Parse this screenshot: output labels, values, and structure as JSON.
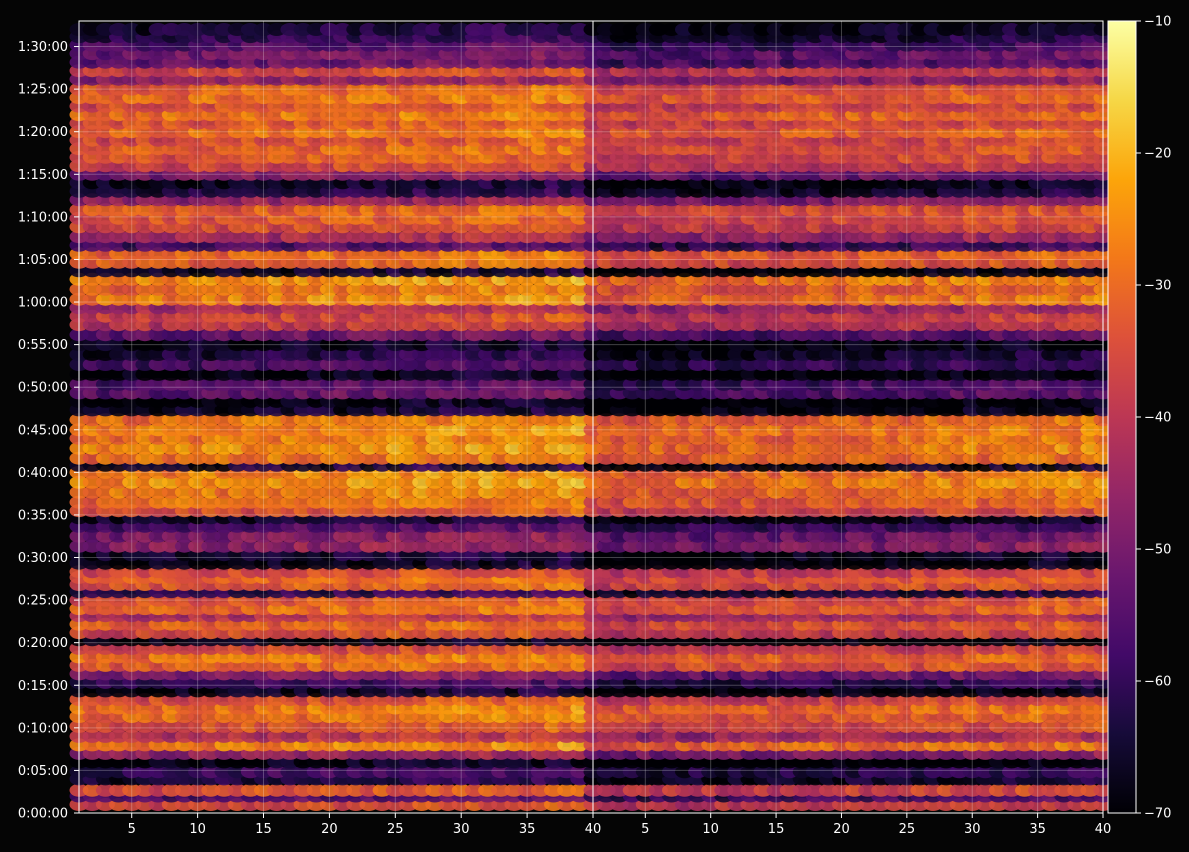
{
  "chart_data": {
    "type": "heatmap",
    "title": "",
    "xlabel": "",
    "ylabel": "",
    "colormap": "inferno",
    "background": "#050505",
    "grid": true,
    "panels": [
      {
        "name": "",
        "xlim": [
          1,
          40
        ],
        "xticks": [
          5,
          10,
          15,
          20,
          25,
          30,
          35,
          40
        ]
      },
      {
        "name": "",
        "xlim": [
          1,
          40
        ],
        "xticks": [
          5,
          10,
          15,
          20,
          25,
          30,
          35,
          40
        ]
      }
    ],
    "ylim_seconds": [
      0,
      5580
    ],
    "yticks": [
      {
        "value": 0,
        "label": "0:00:00"
      },
      {
        "value": 300,
        "label": "0:05:00"
      },
      {
        "value": 600,
        "label": "0:10:00"
      },
      {
        "value": 900,
        "label": "0:15:00"
      },
      {
        "value": 1200,
        "label": "0:20:00"
      },
      {
        "value": 1500,
        "label": "0:25:00"
      },
      {
        "value": 1800,
        "label": "0:30:00"
      },
      {
        "value": 2100,
        "label": "0:35:00"
      },
      {
        "value": 2400,
        "label": "0:40:00"
      },
      {
        "value": 2700,
        "label": "0:45:00"
      },
      {
        "value": 3000,
        "label": "0:50:00"
      },
      {
        "value": 3300,
        "label": "0:55:00"
      },
      {
        "value": 3600,
        "label": "1:00:00"
      },
      {
        "value": 3900,
        "label": "1:05:00"
      },
      {
        "value": 4200,
        "label": "1:10:00"
      },
      {
        "value": 4500,
        "label": "1:15:00"
      },
      {
        "value": 4800,
        "label": "1:20:00"
      },
      {
        "value": 5100,
        "label": "1:25:00"
      },
      {
        "value": 5400,
        "label": "1:30:00"
      }
    ],
    "colorbar": {
      "range": [
        -70,
        -10
      ],
      "ticks": [
        -70,
        -60,
        -50,
        -40,
        -30,
        -20,
        -10
      ],
      "tick_labels": [
        "−70",
        "−60",
        "−50",
        "−40",
        "−30",
        "−20",
        "−10"
      ]
    },
    "row_profile": [
      {
        "t": 60,
        "v": -35
      },
      {
        "t": 120,
        "v": -55
      },
      {
        "t": 160,
        "v": -33
      },
      {
        "t": 240,
        "v": -62
      },
      {
        "t": 290,
        "v": -58
      },
      {
        "t": 360,
        "v": -68
      },
      {
        "t": 420,
        "v": -45
      },
      {
        "t": 480,
        "v": -26
      },
      {
        "t": 540,
        "v": -40
      },
      {
        "t": 610,
        "v": -32
      },
      {
        "t": 680,
        "v": -28
      },
      {
        "t": 740,
        "v": -27
      },
      {
        "t": 800,
        "v": -33
      },
      {
        "t": 860,
        "v": -66
      },
      {
        "t": 920,
        "v": -58
      },
      {
        "t": 980,
        "v": -48
      },
      {
        "t": 1040,
        "v": -30
      },
      {
        "t": 1100,
        "v": -27
      },
      {
        "t": 1160,
        "v": -35
      },
      {
        "t": 1220,
        "v": -67
      },
      {
        "t": 1270,
        "v": -34
      },
      {
        "t": 1330,
        "v": -30
      },
      {
        "t": 1390,
        "v": -40
      },
      {
        "t": 1440,
        "v": -29
      },
      {
        "t": 1500,
        "v": -32
      },
      {
        "t": 1560,
        "v": -60
      },
      {
        "t": 1610,
        "v": -31
      },
      {
        "t": 1660,
        "v": -30
      },
      {
        "t": 1700,
        "v": -35
      },
      {
        "t": 1760,
        "v": -67
      },
      {
        "t": 1820,
        "v": -64
      },
      {
        "t": 1880,
        "v": -45
      },
      {
        "t": 1950,
        "v": -48
      },
      {
        "t": 2020,
        "v": -55
      },
      {
        "t": 2080,
        "v": -65
      },
      {
        "t": 2130,
        "v": -33
      },
      {
        "t": 2190,
        "v": -28
      },
      {
        "t": 2260,
        "v": -26
      },
      {
        "t": 2330,
        "v": -23
      },
      {
        "t": 2400,
        "v": -25
      },
      {
        "t": 2450,
        "v": -64
      },
      {
        "t": 2500,
        "v": -27
      },
      {
        "t": 2570,
        "v": -24
      },
      {
        "t": 2640,
        "v": -26
      },
      {
        "t": 2700,
        "v": -25
      },
      {
        "t": 2770,
        "v": -27
      },
      {
        "t": 2840,
        "v": -65
      },
      {
        "t": 2900,
        "v": -68
      },
      {
        "t": 2960,
        "v": -52
      },
      {
        "t": 3020,
        "v": -54
      },
      {
        "t": 3090,
        "v": -67
      },
      {
        "t": 3160,
        "v": -56
      },
      {
        "t": 3230,
        "v": -62
      },
      {
        "t": 3300,
        "v": -66
      },
      {
        "t": 3370,
        "v": -52
      },
      {
        "t": 3440,
        "v": -38
      },
      {
        "t": 3500,
        "v": -35
      },
      {
        "t": 3560,
        "v": -42
      },
      {
        "t": 3620,
        "v": -25
      },
      {
        "t": 3690,
        "v": -28
      },
      {
        "t": 3760,
        "v": -24
      },
      {
        "t": 3820,
        "v": -66
      },
      {
        "t": 3880,
        "v": -30
      },
      {
        "t": 3940,
        "v": -29
      },
      {
        "t": 4000,
        "v": -56
      },
      {
        "t": 4060,
        "v": -42
      },
      {
        "t": 4130,
        "v": -34
      },
      {
        "t": 4190,
        "v": -32
      },
      {
        "t": 4250,
        "v": -31
      },
      {
        "t": 4320,
        "v": -45
      },
      {
        "t": 4380,
        "v": -62
      },
      {
        "t": 4440,
        "v": -65
      },
      {
        "t": 4500,
        "v": -48
      },
      {
        "t": 4560,
        "v": -35
      },
      {
        "t": 4620,
        "v": -32
      },
      {
        "t": 4680,
        "v": -30
      },
      {
        "t": 4740,
        "v": -33
      },
      {
        "t": 4800,
        "v": -28
      },
      {
        "t": 4860,
        "v": -32
      },
      {
        "t": 4920,
        "v": -27
      },
      {
        "t": 4980,
        "v": -33
      },
      {
        "t": 5040,
        "v": -28
      },
      {
        "t": 5100,
        "v": -30
      },
      {
        "t": 5170,
        "v": -45
      },
      {
        "t": 5230,
        "v": -35
      },
      {
        "t": 5290,
        "v": -52
      },
      {
        "t": 5350,
        "v": -50
      },
      {
        "t": 5410,
        "v": -55
      },
      {
        "t": 5470,
        "v": -60
      },
      {
        "t": 5520,
        "v": -63
      }
    ],
    "panel_offset": [
      0,
      -4
    ],
    "column_trend": [
      -3,
      3
    ],
    "note": ""
  }
}
